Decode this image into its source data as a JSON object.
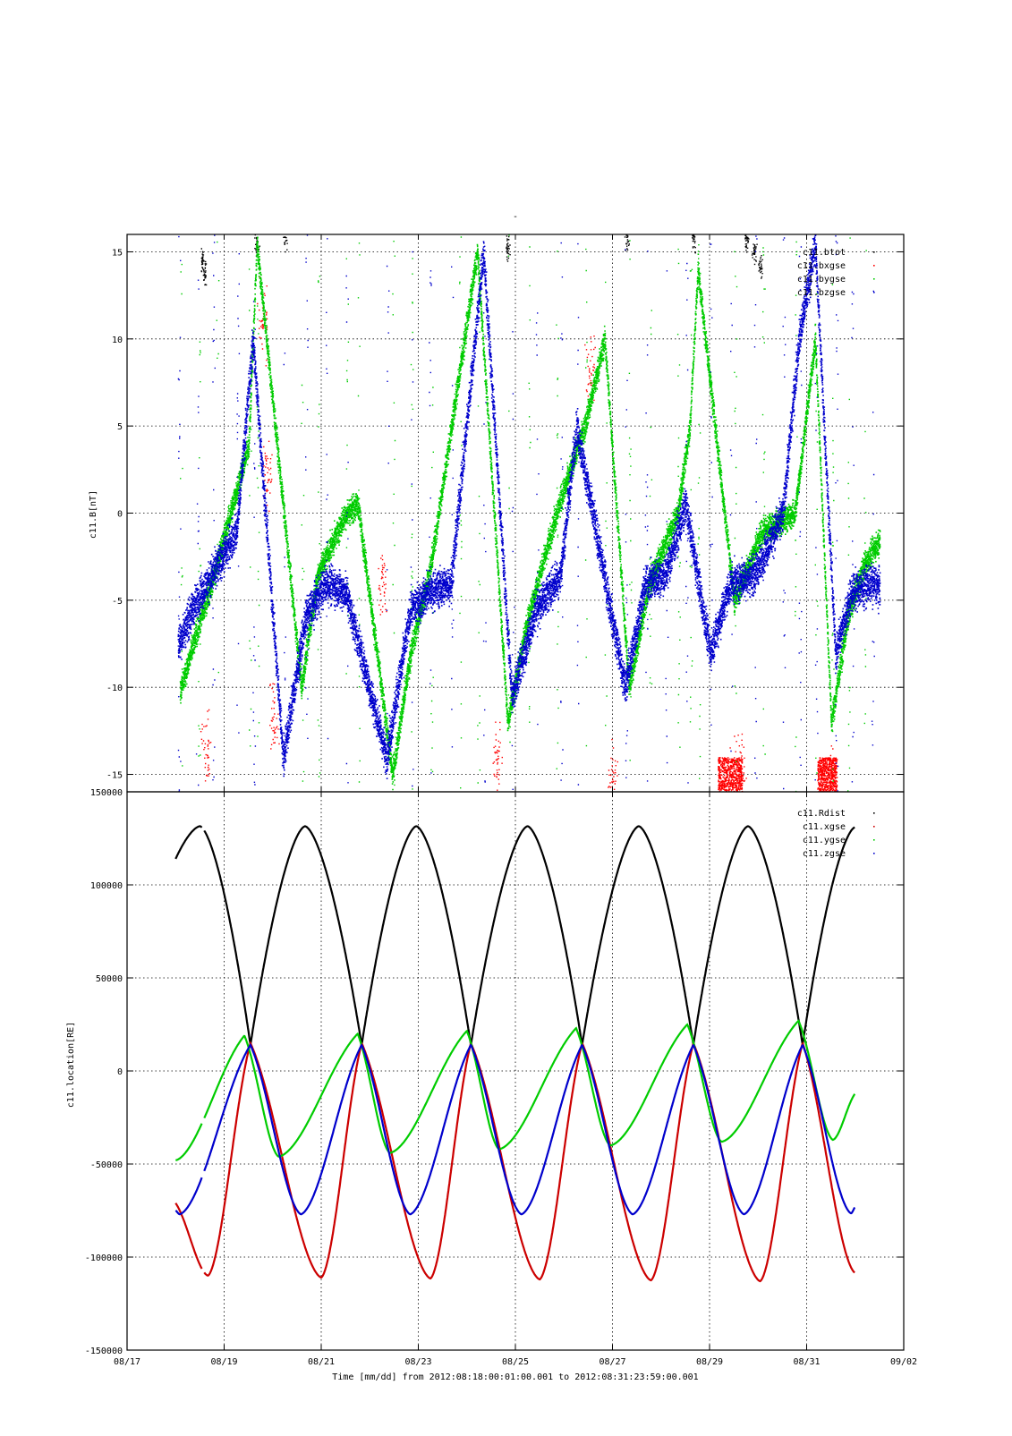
{
  "chart_data": [
    {
      "type": "scatter",
      "title": "-",
      "ylabel": "c11.B[nT]",
      "xlabel": "",
      "xlim": [
        "08/17",
        "09/02"
      ],
      "ylim": [
        -16,
        16
      ],
      "yticks": [
        15,
        10,
        5,
        0,
        -5,
        -10,
        -15
      ],
      "xticks": [
        "08/17",
        "08/19",
        "08/21",
        "08/23",
        "08/25",
        "08/27",
        "08/29",
        "08/31",
        "09/02"
      ],
      "grid": true,
      "legend_position": "top-right",
      "period_days": 2.28,
      "series": [
        {
          "name": "c11.btot",
          "color": "#000000",
          "points": [
            [
              "08/18 13:00",
              14.5
            ],
            [
              "08/18 14:00",
              13.8
            ],
            [
              "08/19 16:00",
              15.4
            ],
            [
              "08/20 06:00",
              15.8
            ],
            [
              "08/24 20:00",
              15.4
            ],
            [
              "08/27 07:00",
              15.7
            ],
            [
              "08/28 16:00",
              15.8
            ],
            [
              "08/29 18:00",
              15.6
            ],
            [
              "08/29 22:00",
              15.0
            ],
            [
              "08/30 01:00",
              14.2
            ]
          ]
        },
        {
          "name": "c11.bxgse",
          "color": "#ff0000",
          "points": [
            [
              "08/18 15:00",
              -13.5
            ],
            [
              "08/19 19:00",
              11.0
            ],
            [
              "08/19 21:00",
              2.0
            ],
            [
              "08/20 00:00",
              -12.0
            ],
            [
              "08/22 06:00",
              -4.0
            ],
            [
              "08/24 15:00",
              -14.0
            ],
            [
              "08/26 13:00",
              8.0
            ],
            [
              "08/27 00:00",
              -15.5
            ],
            [
              "08/29 12:00",
              -15.0
            ],
            [
              "08/29 15:00",
              -14.6
            ],
            [
              "08/31 12:00",
              -15.0
            ]
          ]
        },
        {
          "name": "c11.bygse",
          "color": "#00cc00",
          "points": [
            [
              "08/18 02:00",
              -10.2
            ],
            [
              "08/18 11:00",
              -6.5
            ],
            [
              "08/18 20:00",
              -3.0
            ],
            [
              "08/19 12:00",
              4.0
            ],
            [
              "08/19 16:00",
              15.5
            ],
            [
              "08/20 14:00",
              -10.0
            ],
            [
              "08/20 22:00",
              -3.5
            ],
            [
              "08/21 12:00",
              0.0
            ],
            [
              "08/21 18:00",
              0.5
            ],
            [
              "08/22 11:00",
              -15.0
            ],
            [
              "08/22 20:00",
              -8.0
            ],
            [
              "08/23 06:00",
              -3.0
            ],
            [
              "08/23 20:00",
              8.0
            ],
            [
              "08/24 05:00",
              15.0
            ],
            [
              "08/24 20:00",
              -12.0
            ],
            [
              "08/25 06:00",
              -6.0
            ],
            [
              "08/25 20:00",
              0.0
            ],
            [
              "08/26 10:00",
              5.0
            ],
            [
              "08/26 20:00",
              10.0
            ],
            [
              "08/27 08:00",
              -10.0
            ],
            [
              "08/27 18:00",
              -4.0
            ],
            [
              "08/28 08:00",
              0.0
            ],
            [
              "08/28 14:00",
              5.0
            ],
            [
              "08/28 18:00",
              14.0
            ],
            [
              "08/29 12:00",
              -5.0
            ],
            [
              "08/30 02:00",
              -1.0
            ],
            [
              "08/30 18:00",
              0.0
            ],
            [
              "08/31 04:00",
              10.0
            ],
            [
              "08/31 12:00",
              -12.0
            ],
            [
              "08/31 20:00",
              -6.0
            ],
            [
              "09/01 04:00",
              -3.0
            ],
            [
              "09/01 12:00",
              -1.5
            ]
          ]
        },
        {
          "name": "c11.bzgse",
          "color": "#0000cc",
          "points": [
            [
              "08/18 01:00",
              -7.5
            ],
            [
              "08/18 10:00",
              -5.0
            ],
            [
              "08/18 18:00",
              -3.5
            ],
            [
              "08/19 06:00",
              -1.0
            ],
            [
              "08/19 14:00",
              10.0
            ],
            [
              "08/20 05:00",
              -14.0
            ],
            [
              "08/20 16:00",
              -6.0
            ],
            [
              "08/21 02:00",
              -4.0
            ],
            [
              "08/21 12:00",
              -4.5
            ],
            [
              "08/22 08:00",
              -14.0
            ],
            [
              "08/22 20:00",
              -5.5
            ],
            [
              "08/23 05:00",
              -4.5
            ],
            [
              "08/23 16:00",
              -4.0
            ],
            [
              "08/24 08:00",
              15.0
            ],
            [
              "08/24 22:00",
              -10.5
            ],
            [
              "08/25 10:00",
              -5.5
            ],
            [
              "08/25 22:00",
              -3.5
            ],
            [
              "08/26 06:00",
              5.0
            ],
            [
              "08/27 06:00",
              -10.0
            ],
            [
              "08/27 16:00",
              -4.0
            ],
            [
              "08/28 02:00",
              -3.5
            ],
            [
              "08/28 12:00",
              0.5
            ],
            [
              "08/29 00:00",
              -8.0
            ],
            [
              "08/29 10:00",
              -4.0
            ],
            [
              "08/29 22:00",
              -3.5
            ],
            [
              "08/30 12:00",
              0.0
            ],
            [
              "08/30 20:00",
              10.0
            ],
            [
              "08/31 04:00",
              15.5
            ],
            [
              "08/31 14:00",
              -8.0
            ],
            [
              "08/31 22:00",
              -4.5
            ],
            [
              "09/01 08:00",
              -4.0
            ],
            [
              "09/01 12:00",
              -4.3
            ]
          ]
        }
      ]
    },
    {
      "type": "line",
      "title": "",
      "ylabel": "c11.location[RE]",
      "xlabel": "Time [mm/dd]  from 2012:08:18:00:01:00.001  to  2012:08:31:23:59:00.001",
      "xlim": [
        "08/17",
        "09/02"
      ],
      "ylim": [
        -150000,
        150000
      ],
      "yticks": [
        150000,
        100000,
        50000,
        0,
        -50000,
        -100000,
        -150000
      ],
      "xticks": [
        "08/17",
        "08/19",
        "08/21",
        "08/23",
        "08/25",
        "08/27",
        "08/29",
        "08/31",
        "09/02"
      ],
      "grid": true,
      "legend_position": "top-right",
      "time_range": [
        "08/18 00:01",
        "09/01 00:00"
      ],
      "gap": [
        "08/18 13:00",
        "08/18 14:00"
      ],
      "perigee_times": [
        "08/19 13:00",
        "08/21 20:00",
        "08/24 02:00",
        "08/26 09:00",
        "08/28 16:00",
        "08/30 22:00"
      ],
      "series": [
        {
          "name": "c11.Rdist",
          "color": "#000000",
          "perigee": 14000,
          "apogee": 131500,
          "points": [
            [
              "08/18 00:01",
              114000
            ],
            [
              "08/18 12:00",
              131500
            ],
            [
              "08/19 13:00",
              14000
            ],
            [
              "08/20 16:00",
              131500
            ],
            [
              "08/21 20:00",
              14000
            ],
            [
              "08/22 23:00",
              131500
            ],
            [
              "08/24 02:00",
              14000
            ],
            [
              "08/25 06:00",
              131500
            ],
            [
              "08/26 09:00",
              14000
            ],
            [
              "08/27 13:00",
              131500
            ],
            [
              "08/28 16:00",
              14000
            ],
            [
              "08/29 19:00",
              131500
            ],
            [
              "08/30 22:00",
              14000
            ],
            [
              "09/01 00:00",
              131000
            ]
          ]
        },
        {
          "name": "c11.xgse",
          "color": "#cc0000",
          "points": [
            [
              "08/18 00:01",
              -71000
            ],
            [
              "08/18 16:00",
              -110000
            ],
            [
              "08/19 13:00",
              15000
            ],
            [
              "08/21 00:00",
              -111000
            ],
            [
              "08/21 20:00",
              15000
            ],
            [
              "08/23 06:00",
              -111500
            ],
            [
              "08/24 02:00",
              15000
            ],
            [
              "08/25 12:00",
              -112000
            ],
            [
              "08/26 09:00",
              15000
            ],
            [
              "08/27 19:00",
              -112500
            ],
            [
              "08/28 16:00",
              15000
            ],
            [
              "08/30 01:00",
              -113000
            ],
            [
              "08/30 22:00",
              15000
            ],
            [
              "09/01 00:00",
              -108500
            ]
          ]
        },
        {
          "name": "c11.ygse",
          "color": "#00cc00",
          "points": [
            [
              "08/18 00:01",
              -48000
            ],
            [
              "08/19 10:00",
              19000
            ],
            [
              "08/20 03:00",
              -46000
            ],
            [
              "08/21 18:00",
              20000
            ],
            [
              "08/22 10:00",
              -44000
            ],
            [
              "08/24 00:00",
              21500
            ],
            [
              "08/24 16:00",
              -42000
            ],
            [
              "08/26 06:00",
              23000
            ],
            [
              "08/26 23:00",
              -40000
            ],
            [
              "08/28 13:00",
              25000
            ],
            [
              "08/29 06:00",
              -38000
            ],
            [
              "08/30 20:00",
              27000
            ],
            [
              "08/31 13:00",
              -37000
            ],
            [
              "09/01 00:00",
              -12000
            ]
          ]
        },
        {
          "name": "c11.zgse",
          "color": "#0000cc",
          "points": [
            [
              "08/18 00:01",
              -75000
            ],
            [
              "08/18 02:00",
              -77000
            ],
            [
              "08/19 13:00",
              14000
            ],
            [
              "08/20 14:00",
              -77000
            ],
            [
              "08/21 20:00",
              14000
            ],
            [
              "08/22 20:00",
              -77000
            ],
            [
              "08/24 02:00",
              14000
            ],
            [
              "08/25 03:00",
              -77000
            ],
            [
              "08/26 09:00",
              14000
            ],
            [
              "08/27 10:00",
              -77000
            ],
            [
              "08/28 16:00",
              14000
            ],
            [
              "08/29 17:00",
              -77000
            ],
            [
              "08/30 22:00",
              14000
            ],
            [
              "08/31 22:00",
              -76500
            ],
            [
              "09/01 00:00",
              -73000
            ]
          ]
        }
      ]
    }
  ]
}
